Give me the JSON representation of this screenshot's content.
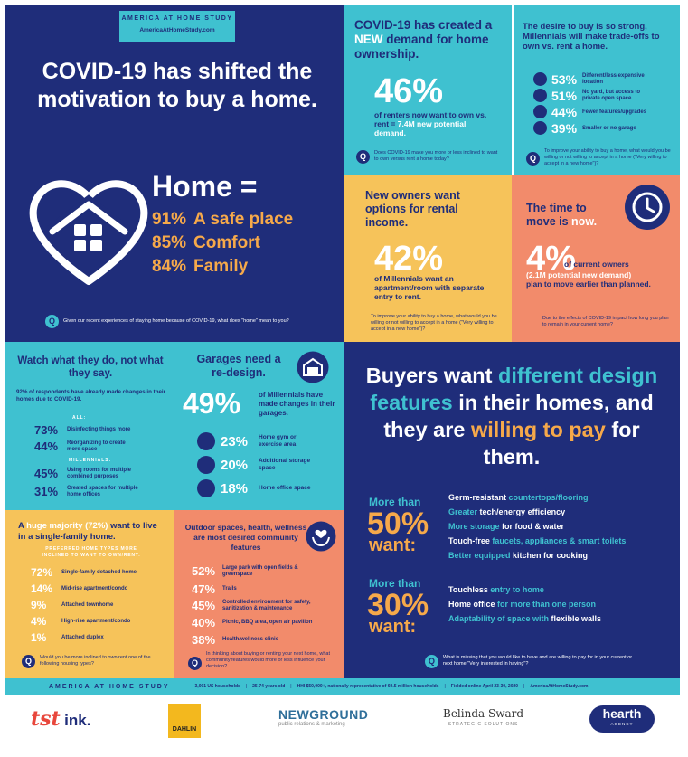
{
  "brand": {
    "badge_title": "AMERICA AT HOME STUDY",
    "badge_url": "AmericaAtHomeStudy.com"
  },
  "hero": {
    "title": "COVID-19 has shifted the motivation to buy a home.",
    "home_label": "Home =",
    "items": [
      {
        "pct": "91%",
        "label": "A safe place"
      },
      {
        "pct": "85%",
        "label": "Comfort"
      },
      {
        "pct": "84%",
        "label": "Family"
      }
    ],
    "question": "Given our recent experiences of staying home because of COVID-19, what does \"home\" mean to you?"
  },
  "demand": {
    "title_a": "COVID-19 has created a",
    "title_new": "NEW",
    "title_b": "demand for home ownership.",
    "stat": "46%",
    "desc_a": "of renters now want to own vs. rent =",
    "desc_b": "7.4M new potential demand.",
    "question": "Does COVID-19 make you more or less inclined to want to own versus rent a home today?"
  },
  "tradeoffs": {
    "title": "The desire to buy is so strong, Millennials will make trade-offs to own vs. rent a home.",
    "items": [
      {
        "pct": "53%",
        "label": "Different/less expensive location"
      },
      {
        "pct": "51%",
        "label": "No yard, but access to private open space"
      },
      {
        "pct": "44%",
        "label": "Fewer features/upgrades"
      },
      {
        "pct": "39%",
        "label": "Smaller or no garage"
      }
    ],
    "question": "To improve your ability to buy a home, what would you be willing or not willing to accept in a home (\"Very willing to accept in a new home\")?"
  },
  "rental": {
    "title": "New owners want options for rental income.",
    "stat": "42%",
    "desc": "of Millennials want an apartment/room with separate entry to rent.",
    "question": "To improve your ability to buy a home, what would you be willing or not willing to accept in a home (\"Very willing to accept in a new home\")?"
  },
  "move": {
    "title_a": "The time to move is",
    "title_b": "now.",
    "stat": "4%",
    "desc_a": "of current owners",
    "desc_b": "(2.1M potential new demand)",
    "desc_c": "plan to move earlier than planned.",
    "question": "Due to the effects of COVID-19 impact how long you plan to remain in your current home?"
  },
  "watch": {
    "title": "Watch what they do, not what they say.",
    "subtitle": "92% of respondents have already made changes in their homes due to COVID-19.",
    "all_label": "ALL:",
    "all_items": [
      {
        "pct": "73%",
        "label": "Disinfecting things more"
      },
      {
        "pct": "44%",
        "label": "Reorganizing to create more space"
      }
    ],
    "mill_label": "MILLENNIALS:",
    "mill_items": [
      {
        "pct": "45%",
        "label": "Using rooms for multiple combined purposes"
      },
      {
        "pct": "31%",
        "label": "Created spaces for multiple home offices"
      }
    ]
  },
  "garage": {
    "title": "Garages need a re-design.",
    "stat": "49%",
    "desc": "of Millennials have made changes in their garages.",
    "items": [
      {
        "pct": "23%",
        "label": "Home gym or exercise area"
      },
      {
        "pct": "20%",
        "label": "Additional storage space"
      },
      {
        "pct": "18%",
        "label": "Home office space"
      }
    ]
  },
  "design": {
    "title_1": "Buyers want",
    "title_2": "different",
    "title_3": "design features",
    "title_4": "in their homes, and they are",
    "title_5": "willing to pay",
    "title_6": "for them.",
    "group1_a": "More than",
    "group1_pct": "50%",
    "group1_b": "want:",
    "group1_items": [
      {
        "w": "Germ-resistant",
        "h": "countertops/flooring"
      },
      {
        "w": "Greater",
        "h": "tech/energy efficiency"
      },
      {
        "w": "More storage",
        "h": "for food & water"
      },
      {
        "w": "Touch-free",
        "h": "faucets, appliances & smart toilets"
      },
      {
        "w": "Better equipped",
        "h": "kitchen for cooking"
      }
    ],
    "group2_a": "More than",
    "group2_pct": "30%",
    "group2_b": "want:",
    "group2_items": [
      {
        "w": "Touchless",
        "h": "entry to home"
      },
      {
        "w": "Home office",
        "h": "for more than one person"
      },
      {
        "w": "Adaptability of space with",
        "h": "flexible walls"
      }
    ],
    "question": "What is missing that you would like to have and are willing to pay for in your current or next home \"Very interested in having\"?"
  },
  "single": {
    "title_a": "A",
    "title_huge": "huge majority (72%)",
    "title_b": "want to live in a single-family home.",
    "subtitle": "PREFERRED HOME TYPES MORE INCLINED TO WANT TO OWN/RENT:",
    "items": [
      {
        "pct": "72%",
        "label": "Single-family detached home"
      },
      {
        "pct": "14%",
        "label": "Mid-rise apartment/condo"
      },
      {
        "pct": "9%",
        "label": "Attached townhome"
      },
      {
        "pct": "4%",
        "label": "High-rise apartment/condo"
      },
      {
        "pct": "1%",
        "label": "Attached duplex"
      }
    ],
    "question": "Would you be more inclined to own/rent one of the following housing types?"
  },
  "outdoor": {
    "title": "Outdoor spaces, health, wellness are most desired community features",
    "items": [
      {
        "pct": "52%",
        "label": "Large park with open fields & greenspace"
      },
      {
        "pct": "47%",
        "label": "Trails"
      },
      {
        "pct": "45%",
        "label": "Controlled environment for safety, sanitization & maintenance"
      },
      {
        "pct": "40%",
        "label": "Picnic, BBQ area, open air pavilion"
      },
      {
        "pct": "38%",
        "label": "Health/wellness clinic"
      }
    ],
    "question": "In thinking about buying or renting your next home, what community features would more or less influence your decision?"
  },
  "footer": {
    "brand": "AMERICA AT HOME STUDY",
    "stats": [
      "3,001 US households",
      "25-74 years old",
      "HHI $50,000+, nationally representative of 69.5 million households",
      "Fielded online April 23-30, 2020",
      "AmericaAtHomeStudy.com"
    ]
  },
  "logos": {
    "l1": "ink.",
    "l1_prefix": "tst",
    "l2": "DAHLIN",
    "l3": "NEWGROUND",
    "l3_sub": "public relations & marketing",
    "l4": "Belinda Sward",
    "l4_sub": "STRATEGIC SOLUTIONS",
    "l5": "hearth",
    "l5_sub": "AGENCY"
  },
  "colors": {
    "navy": "#1f2d7a",
    "teal": "#3fc1d0",
    "yellow": "#f6c35a",
    "salmon": "#f28b6b",
    "orange": "#f6a94a"
  }
}
